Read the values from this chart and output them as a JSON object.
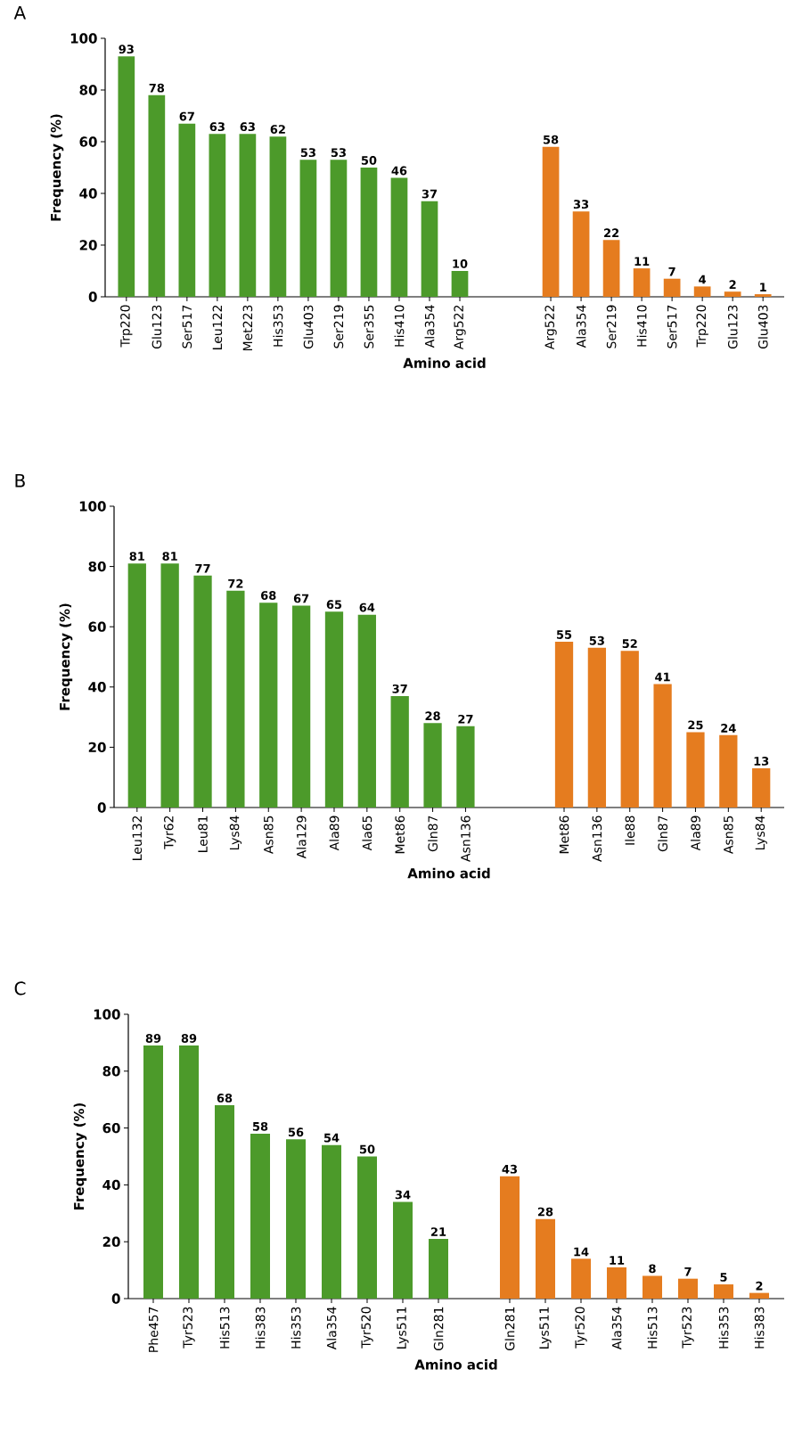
{
  "chart_data": [
    {
      "type": "bar",
      "title": "A",
      "xlabel": "Amino acid",
      "ylabel": "Frequency (%)",
      "categories": [
        "Trp220",
        "Glu123",
        "Ser517",
        "Leu122",
        "Met223",
        "His353",
        "Glu403",
        "Ser219",
        "Ser355",
        "His410",
        "Ala354",
        "Arg522",
        null,
        null,
        "Arg522",
        "Ala354",
        "Ser219",
        "His410",
        "Ser517",
        "Trp220",
        "Glu123",
        "Glu403"
      ],
      "values": [
        93,
        78,
        67,
        63,
        63,
        62,
        53,
        53,
        50,
        46,
        37,
        10,
        null,
        null,
        58,
        33,
        22,
        11,
        7,
        4,
        2,
        1
      ],
      "colors": [
        "#4c9a2a",
        "#4c9a2a",
        "#4c9a2a",
        "#4c9a2a",
        "#4c9a2a",
        "#4c9a2a",
        "#4c9a2a",
        "#4c9a2a",
        "#4c9a2a",
        "#4c9a2a",
        "#4c9a2a",
        "#4c9a2a",
        null,
        null,
        "#e57c1f",
        "#e57c1f",
        "#e57c1f",
        "#e57c1f",
        "#e57c1f",
        "#e57c1f",
        "#e57c1f",
        "#e57c1f"
      ],
      "ylim": [
        0,
        100
      ],
      "yticks": [
        0,
        20,
        40,
        60,
        80,
        100
      ],
      "data_labels": true
    },
    {
      "type": "bar",
      "title": "B",
      "xlabel": "Amino acid",
      "ylabel": "Frequency (%)",
      "categories": [
        "Leu132",
        "Tyr62",
        "Leu81",
        "Lys84",
        "Asn85",
        "Ala129",
        "Ala89",
        "Ala65",
        "Met86",
        "Gln87",
        "Asn136",
        null,
        null,
        "Met86",
        "Asn136",
        "Ile88",
        "Gln87",
        "Ala89",
        "Asn85",
        "Lys84"
      ],
      "values": [
        81,
        81,
        77,
        72,
        68,
        67,
        65,
        64,
        37,
        28,
        27,
        null,
        null,
        55,
        53,
        52,
        41,
        25,
        24,
        13
      ],
      "colors": [
        "#4c9a2a",
        "#4c9a2a",
        "#4c9a2a",
        "#4c9a2a",
        "#4c9a2a",
        "#4c9a2a",
        "#4c9a2a",
        "#4c9a2a",
        "#4c9a2a",
        "#4c9a2a",
        "#4c9a2a",
        null,
        null,
        "#e57c1f",
        "#e57c1f",
        "#e57c1f",
        "#e57c1f",
        "#e57c1f",
        "#e57c1f",
        "#e57c1f"
      ],
      "ylim": [
        0,
        100
      ],
      "yticks": [
        0,
        20,
        40,
        60,
        80,
        100
      ],
      "data_labels": true
    },
    {
      "type": "bar",
      "title": "C",
      "xlabel": "Amino acid",
      "ylabel": "Frequency (%)",
      "categories": [
        "Phe457",
        "Tyr523",
        "His513",
        "His383",
        "His353",
        "Ala354",
        "Tyr520",
        "Lys511",
        "Gln281",
        null,
        "Gln281",
        "Lys511",
        "Tyr520",
        "Ala354",
        "His513",
        "Tyr523",
        "His353",
        "His383"
      ],
      "values": [
        89,
        89,
        68,
        58,
        56,
        54,
        50,
        34,
        21,
        null,
        43,
        28,
        14,
        11,
        8,
        7,
        5,
        2
      ],
      "colors": [
        "#4c9a2a",
        "#4c9a2a",
        "#4c9a2a",
        "#4c9a2a",
        "#4c9a2a",
        "#4c9a2a",
        "#4c9a2a",
        "#4c9a2a",
        "#4c9a2a",
        null,
        "#e57c1f",
        "#e57c1f",
        "#e57c1f",
        "#e57c1f",
        "#e57c1f",
        "#e57c1f",
        "#e57c1f",
        "#e57c1f"
      ],
      "ylim": [
        0,
        100
      ],
      "yticks": [
        0,
        20,
        40,
        60,
        80,
        100
      ],
      "data_labels": true
    }
  ]
}
